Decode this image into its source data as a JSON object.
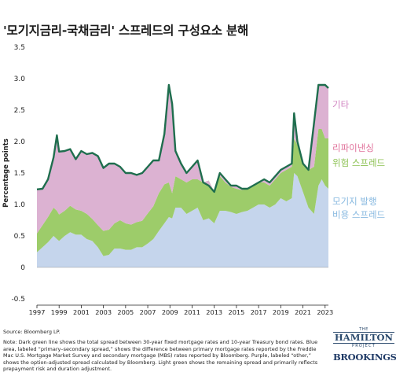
{
  "chart_data": {
    "type": "area",
    "title": "'모기지금리-국채금리' 스프레드의 구성요소 분해",
    "ylabel": "Percentage points",
    "ylim": [
      -0.5,
      3.5
    ],
    "yticks": [
      "-0.5",
      "0",
      "0.5",
      "1.0",
      "1.5",
      "2.0",
      "2.5",
      "3.0",
      "3.5"
    ],
    "xlim": [
      1997,
      2023.3
    ],
    "xticks": [
      "1997",
      "1999",
      "2001",
      "2003",
      "2005",
      "2007",
      "2009",
      "2011",
      "2013",
      "2015",
      "2017",
      "2019",
      "2021",
      "2023"
    ],
    "x": [
      1997.0,
      1997.5,
      1998.0,
      1998.5,
      1998.8,
      1999.0,
      1999.5,
      2000.0,
      2000.5,
      2001.0,
      2001.5,
      2002.0,
      2002.5,
      2003.0,
      2003.5,
      2004.0,
      2004.5,
      2005.0,
      2005.5,
      2006.0,
      2006.5,
      2007.0,
      2007.5,
      2008.0,
      2008.5,
      2008.9,
      2009.2,
      2009.5,
      2010.0,
      2010.5,
      2011.0,
      2011.5,
      2012.0,
      2012.5,
      2013.0,
      2013.5,
      2014.0,
      2014.5,
      2015.0,
      2015.5,
      2016.0,
      2016.5,
      2017.0,
      2017.5,
      2018.0,
      2018.5,
      2019.0,
      2019.5,
      2020.0,
      2020.2,
      2020.5,
      2021.0,
      2021.5,
      2022.0,
      2022.4,
      2022.7,
      2023.0,
      2023.3
    ],
    "series": [
      {
        "name": "모기지 발행 비용 스프레드",
        "color": "#c5d5ec",
        "values": [
          0.24,
          0.32,
          0.4,
          0.5,
          0.45,
          0.42,
          0.5,
          0.56,
          0.52,
          0.52,
          0.45,
          0.42,
          0.32,
          0.18,
          0.2,
          0.3,
          0.3,
          0.28,
          0.28,
          0.32,
          0.32,
          0.38,
          0.45,
          0.58,
          0.7,
          0.8,
          0.78,
          0.95,
          0.95,
          0.85,
          0.9,
          0.95,
          0.75,
          0.78,
          0.7,
          0.9,
          0.9,
          0.88,
          0.85,
          0.88,
          0.9,
          0.95,
          1.0,
          1.0,
          0.95,
          1.0,
          1.1,
          1.05,
          1.1,
          1.5,
          1.45,
          1.2,
          0.95,
          0.85,
          1.3,
          1.4,
          1.3,
          1.25
        ]
      },
      {
        "name": "리파이낸싱 위험 스프레드",
        "color": "#9dcc6a",
        "values": [
          0.3,
          0.35,
          0.4,
          0.45,
          0.45,
          0.42,
          0.4,
          0.42,
          0.4,
          0.38,
          0.4,
          0.35,
          0.35,
          0.4,
          0.4,
          0.4,
          0.45,
          0.42,
          0.4,
          0.4,
          0.42,
          0.48,
          0.52,
          0.6,
          0.62,
          0.55,
          0.4,
          0.5,
          0.45,
          0.5,
          0.5,
          0.45,
          0.6,
          0.6,
          0.5,
          0.55,
          0.45,
          0.4,
          0.4,
          0.35,
          0.35,
          0.35,
          0.35,
          0.35,
          0.35,
          0.4,
          0.4,
          0.5,
          0.5,
          0.55,
          0.5,
          0.45,
          0.6,
          0.75,
          0.9,
          0.8,
          0.75,
          0.8
        ]
      },
      {
        "name": "기타",
        "color": "#dcb2d2",
        "values": [
          0.7,
          0.58,
          0.6,
          0.8,
          1.2,
          1.0,
          0.95,
          0.9,
          0.8,
          0.95,
          0.95,
          1.05,
          1.1,
          1.0,
          1.05,
          0.95,
          0.85,
          0.8,
          0.82,
          0.75,
          0.76,
          0.74,
          0.73,
          0.52,
          0.8,
          1.55,
          1.42,
          0.4,
          0.25,
          0.15,
          0.2,
          0.3,
          0.0,
          -0.08,
          0.0,
          0.05,
          0.05,
          0.02,
          0.05,
          0.02,
          0.0,
          0.0,
          0.0,
          0.05,
          0.05,
          0.05,
          0.05,
          0.05,
          0.05,
          0.4,
          0.05,
          0.0,
          0.0,
          0.7,
          0.7,
          0.7,
          0.85,
          0.8
        ]
      },
      {
        "name": "Total spread",
        "color": "#1f6e4e",
        "values": [
          1.24,
          1.25,
          1.4,
          1.75,
          2.1,
          1.84,
          1.85,
          1.88,
          1.72,
          1.85,
          1.8,
          1.82,
          1.77,
          1.58,
          1.65,
          1.65,
          1.6,
          1.5,
          1.5,
          1.47,
          1.5,
          1.6,
          1.7,
          1.7,
          2.12,
          2.9,
          2.6,
          1.85,
          1.65,
          1.5,
          1.6,
          1.7,
          1.35,
          1.3,
          1.2,
          1.5,
          1.4,
          1.3,
          1.3,
          1.25,
          1.25,
          1.3,
          1.35,
          1.4,
          1.35,
          1.45,
          1.55,
          1.6,
          1.65,
          2.45,
          2.0,
          1.65,
          1.55,
          2.3,
          2.9,
          2.9,
          2.9,
          2.85
        ]
      }
    ],
    "series_labels": {
      "other": "기타",
      "refi_line1": "리파이낸싱",
      "refi_line2": "위험 스프레드",
      "orig_line1": "모기지 발행",
      "orig_line2": "비용 스프레드"
    },
    "grid": false
  },
  "source": "Source: Bloomberg LP.",
  "note": "Note: Dark green line shows the total spread between 30-year fixed mortgage rates and 10-year Treasury bond rates. Blue area, labeled “primary–secondary spread,” shows the difference between primary mortgage rates reported by the Freddie Mac U.S. Mortgage Market Survey and secondary mortgage (MBS) rates reported by Bloomberg. Purple, labeled “other,” shows the option-adjusted spread calculated by Bloomberg. Light green shows the remaining spread and primarily reflects prepayment risk and duration adjustment.",
  "logos": {
    "hamilton_top": "THE",
    "hamilton_main": "HAMILTON",
    "hamilton_sub": "PROJECT",
    "brookings": "BROOKINGS"
  }
}
